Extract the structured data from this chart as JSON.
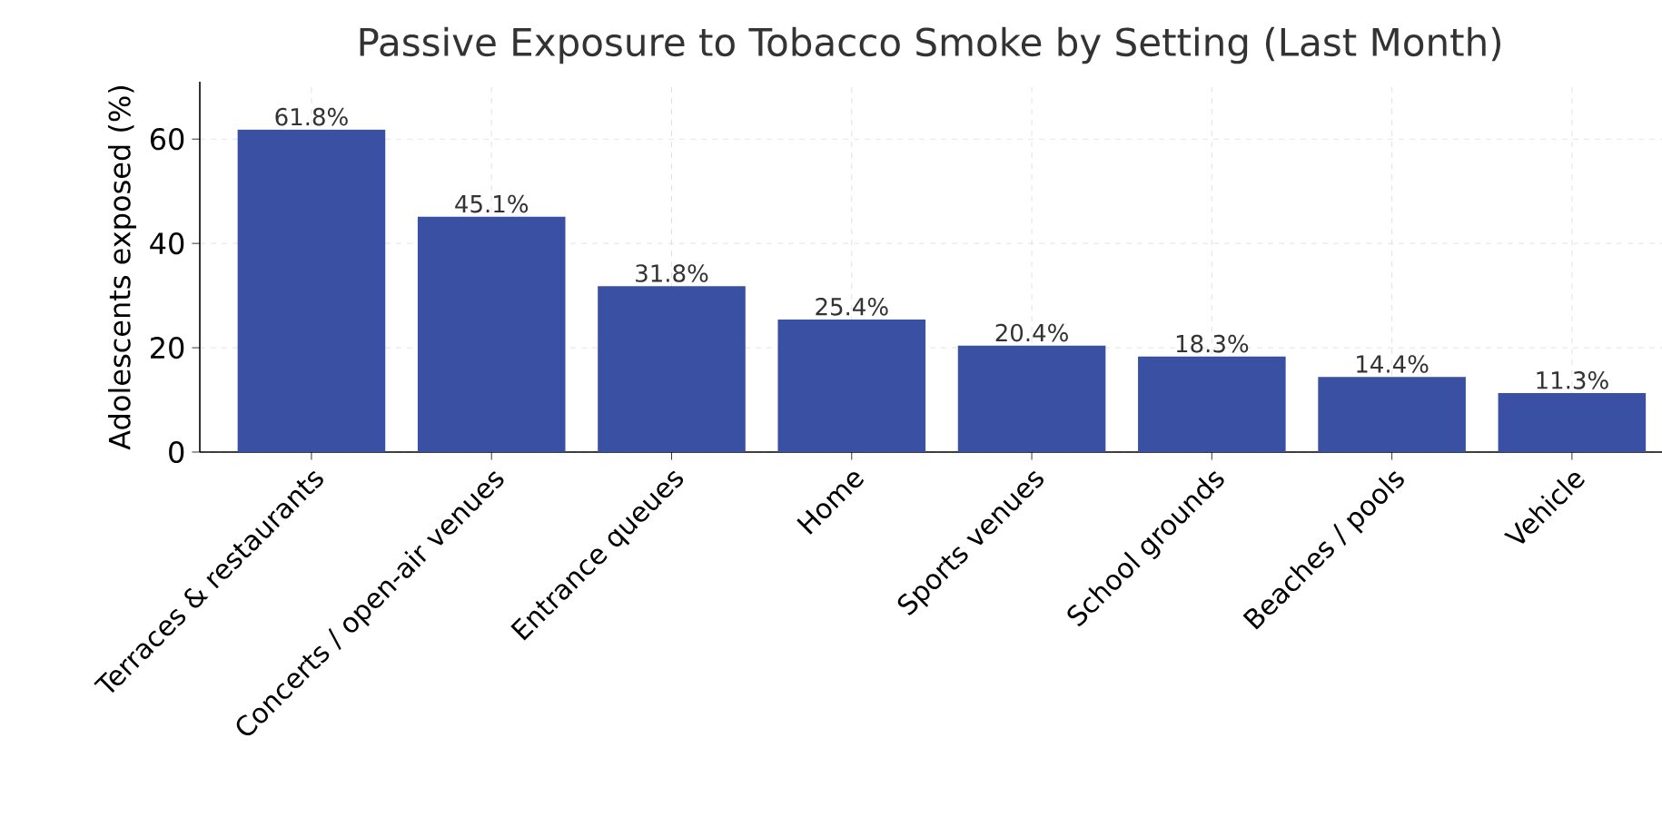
{
  "chart_data": {
    "type": "bar",
    "title": "Passive Exposure to Tobacco Smoke by Setting (Last Month)",
    "ylabel": "Adolescents exposed (%)",
    "categories": [
      "Terraces & restaurants",
      "Concerts / open-air venues",
      "Entrance queues",
      "Home",
      "Sports venues",
      "School grounds",
      "Beaches / pools",
      "Vehicle"
    ],
    "values": [
      61.8,
      45.1,
      31.8,
      25.4,
      20.4,
      18.3,
      14.4,
      11.3
    ],
    "value_labels": [
      "61.8%",
      "45.1%",
      "31.8%",
      "25.4%",
      "20.4%",
      "18.3%",
      "14.4%",
      "11.3%"
    ],
    "color": "#3a50a2",
    "ylim": [
      0,
      71
    ],
    "yticks": [
      0,
      20,
      40,
      60
    ],
    "grid": true
  }
}
